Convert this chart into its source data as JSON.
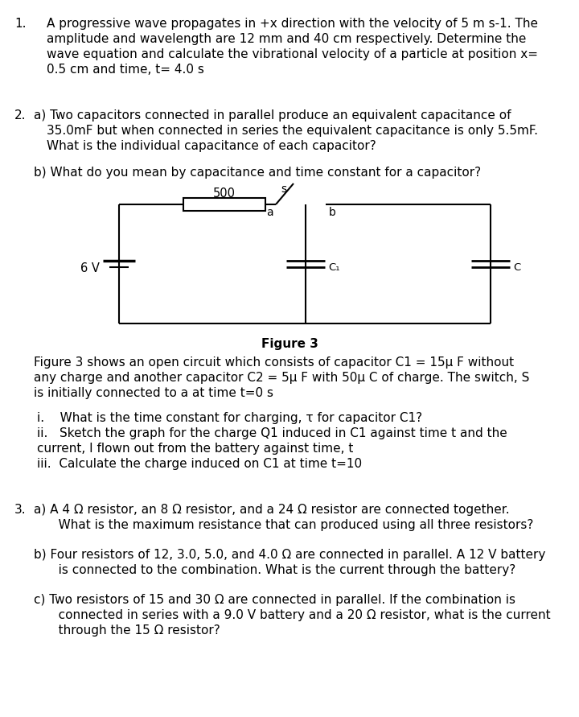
{
  "bg_color": "#ffffff",
  "page_width": 7.2,
  "page_height": 8.91,
  "dpi": 100,
  "q1_number": "1.",
  "q1_lines": [
    "A progressive wave propagates in +x direction with the velocity of 5 m s-1. The",
    "amplitude and wavelength are 12 mm and 40 cm respectively. Determine the",
    "wave equation and calculate the vibrational velocity of a particle at position x=",
    "0.5 cm and time, t= 4.0 s"
  ],
  "q2_number": "2.",
  "q2_a_lines": [
    "a) Two capacitors connected in parallel produce an equivalent capacitance of",
    "35.0mF but when connected in series the equivalent capacitance is only 5.5mF.",
    "What is the individual capacitance of each capacitor?"
  ],
  "q2_b_line": "b) What do you mean by capacitance and time constant for a capacitor?",
  "resistor_label": "500",
  "switch_a": "a",
  "switch_s": "s",
  "switch_b": "b",
  "battery_label": "6 V",
  "cap1_label": "C₁",
  "cap2_label": "C",
  "figure_caption": "Figure 3",
  "figure_desc_lines": [
    "Figure 3 shows an open circuit which consists of capacitor C1 = 15μ F without",
    "any charge and another capacitor C2 = 5μ F with 50μ C of charge. The switch, S",
    "is initially connected to a at time t=0 s"
  ],
  "q2_sub_i": "i.    What is the time constant for charging, τ for capacitor C1?",
  "q2_sub_ii_1": "ii.   Sketch the graph for the charge Q1 induced in C1 against time t and the",
  "q2_sub_ii_2": "current, I flown out from the battery against time, t",
  "q2_sub_iii": "iii.  Calculate the charge induced on C1 at time t=10",
  "q3_number": "3.",
  "q3_a_lines": [
    "a) A 4 Ω resistor, an 8 Ω resistor, and a 24 Ω resistor are connected together.",
    "   What is the maximum resistance that can produced using all three resistors?"
  ],
  "q3_b_lines": [
    "b) Four resistors of 12, 3.0, 5.0, and 4.0 Ω are connected in parallel. A 12 V battery",
    "   is connected to the combination. What is the current through the battery?"
  ],
  "q3_c_lines": [
    "c) Two resistors of 15 and 30 Ω are connected in parallel. If the combination is",
    "   connected in series with a 9.0 V battery and a 20 Ω resistor, what is the current",
    "   through the 15 Ω resistor?"
  ]
}
